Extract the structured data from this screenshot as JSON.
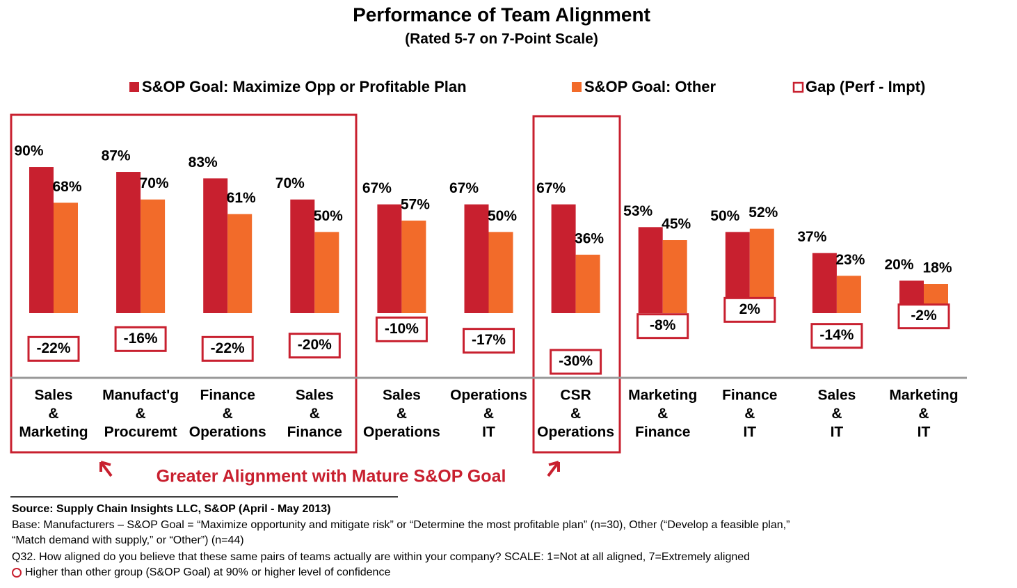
{
  "chart_data": {
    "type": "bar",
    "title": "Performance  of Team Alignment",
    "subtitle": "(Rated 5-7 on 7-Point Scale)",
    "categories": [
      [
        "Sales",
        "&",
        "Marketing"
      ],
      [
        "Manufact'g",
        "&",
        "Procuremt"
      ],
      [
        "Finance",
        "&",
        "Operations"
      ],
      [
        "Sales",
        "&",
        "Finance"
      ],
      [
        "Sales",
        "&",
        "Operations"
      ],
      [
        "Operations",
        "&",
        "IT"
      ],
      [
        "CSR",
        "&",
        "Operations"
      ],
      [
        "Marketing",
        "&",
        "Finance"
      ],
      [
        "Finance",
        "&",
        "IT"
      ],
      [
        "Sales",
        "&",
        "IT"
      ],
      [
        "Marketing",
        "&",
        "IT"
      ]
    ],
    "series": [
      {
        "name": "S&OP Goal: Maximize Opp or Profitable Plan",
        "color": "#c8202f",
        "values": [
          90,
          87,
          83,
          70,
          67,
          67,
          67,
          53,
          50,
          37,
          20
        ],
        "value_labels": [
          "90%",
          "87%",
          "83%",
          "70%",
          "67%",
          "67%",
          "67%",
          "53%",
          "50%",
          "37%",
          "20%"
        ]
      },
      {
        "name": "S&OP Goal: Other",
        "color": "#f26b2a",
        "values": [
          68,
          70,
          61,
          50,
          57,
          50,
          36,
          45,
          52,
          23,
          18
        ],
        "value_labels": [
          "68%",
          "70%",
          "61%",
          "50%",
          "57%",
          "50%",
          "36%",
          "45%",
          "52%",
          "23%",
          "18%"
        ]
      },
      {
        "name": "Gap (Perf - Impt)",
        "color": "#c8202f",
        "values": [
          -22,
          -16,
          -22,
          -20,
          -10,
          -17,
          -30,
          -8,
          2,
          -14,
          -2
        ],
        "value_labels": [
          "-22%",
          "-16%",
          "-22%",
          "-20%",
          "-10%",
          "-17%",
          "-30%",
          "-8%",
          "2%",
          "-14%",
          "-2%"
        ]
      }
    ],
    "annotation": "Greater Alignment with Mature S&OP Goal",
    "notes": [
      "Source:  Supply Chain Insights LLC, S&OP (April - May 2013)",
      "Base:  Manufacturers – S&OP Goal = “Maximize opportunity and mitigate risk” or “Determine the most profitable plan” (n=30), Other (“Develop a feasible plan,”",
      "“Match demand with supply,” or “Other”) (n=44)",
      "Q32. How aligned do you believe that these same pairs of teams actually are within your company?  SCALE: 1=Not at all aligned, 7=Extremely aligned",
      "Higher than other group (S&OP Goal) at 90% or higher level of confidence"
    ]
  }
}
